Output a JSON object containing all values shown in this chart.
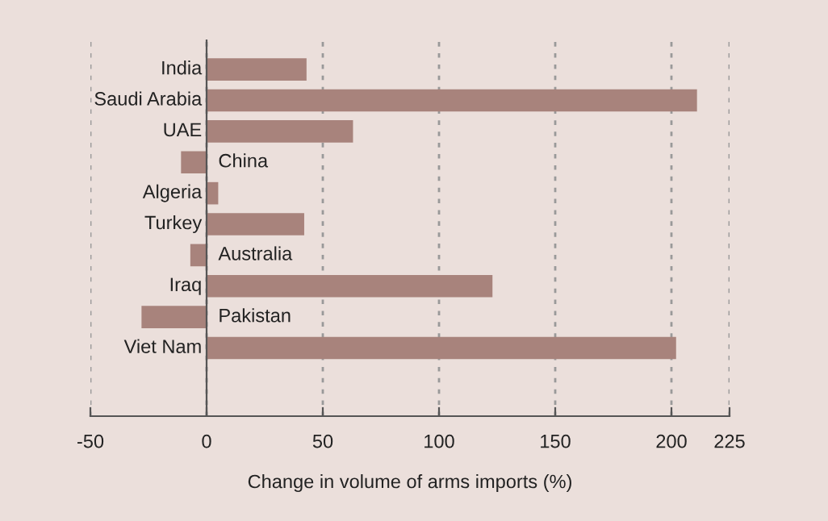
{
  "chart_data": {
    "type": "bar",
    "orientation": "horizontal",
    "categories": [
      "India",
      "Saudi Arabia",
      "UAE",
      "China",
      "Algeria",
      "Turkey",
      "Australia",
      "Iraq",
      "Pakistan",
      "Viet Nam"
    ],
    "values": [
      43,
      211,
      63,
      -11,
      5,
      42,
      -7,
      123,
      -28,
      202
    ],
    "color": "#a8837c",
    "xlabel": "Change in volume of arms imports (%)",
    "xlim": [
      -50,
      225
    ],
    "xticks": [
      -50,
      0,
      50,
      100,
      150,
      200,
      225
    ],
    "grid": "x",
    "line_style": "dashed"
  }
}
